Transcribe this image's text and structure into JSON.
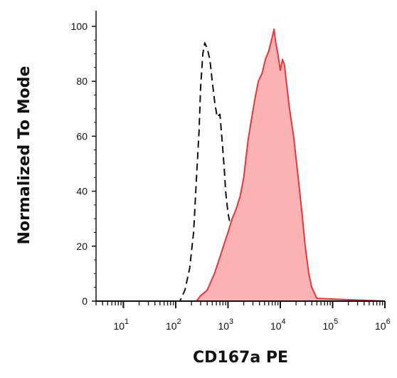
{
  "chart_data": {
    "type": "area",
    "xlabel": "CD167a PE",
    "ylabel": "Normalized To Mode",
    "x_scale": "log",
    "xlim": [
      3,
      1000000
    ],
    "ylim": [
      0,
      100
    ],
    "y_ticks": [
      0,
      20,
      40,
      60,
      80,
      100
    ],
    "x_ticks": [
      {
        "value": 10,
        "base": "10",
        "exp": "1"
      },
      {
        "value": 100,
        "base": "10",
        "exp": "2"
      },
      {
        "value": 1000,
        "base": "10",
        "exp": "3"
      },
      {
        "value": 10000,
        "base": "10",
        "exp": "4"
      },
      {
        "value": 100000,
        "base": "10",
        "exp": "5"
      },
      {
        "value": 1000000,
        "base": "10",
        "exp": "6"
      }
    ],
    "grid": false,
    "legend": "none",
    "colors": {
      "filled_line": "#e8363a",
      "filled_area": "#fdb3b4",
      "control_line": "#111111"
    },
    "series": [
      {
        "style": "dashed-unfilled",
        "x": [
          3,
          100,
          120,
          150,
          185,
          220,
          250,
          280,
          300,
          330,
          360,
          400,
          450,
          500,
          560,
          620,
          700,
          760,
          850,
          900,
          1000,
          1100,
          1200,
          1350,
          1500,
          1700,
          2000,
          2400,
          3000,
          4000,
          5500,
          7000,
          10000,
          13000,
          1000000
        ],
        "y": [
          0,
          0,
          0,
          4,
          12,
          25,
          45,
          62,
          78,
          90,
          94,
          92,
          88,
          80,
          72,
          67,
          68,
          60,
          48,
          40,
          32,
          28,
          25,
          18,
          12,
          7,
          4,
          2,
          1,
          0.5,
          1.2,
          0.6,
          0,
          0,
          0
        ]
      },
      {
        "style": "filled",
        "x": [
          3,
          250,
          300,
          400,
          550,
          700,
          850,
          1000,
          1200,
          1400,
          1700,
          2000,
          2400,
          2800,
          3300,
          3800,
          4500,
          5200,
          6000,
          7000,
          7600,
          8200,
          9000,
          10000,
          11000,
          12000,
          13000,
          15000,
          18000,
          22000,
          26000,
          30000,
          35000,
          40000,
          50000,
          1000000
        ],
        "y": [
          0,
          0,
          2,
          4,
          10,
          16,
          21,
          25,
          30,
          33,
          38,
          45,
          58,
          66,
          74,
          80,
          83,
          88,
          91,
          96,
          99,
          94,
          90,
          84,
          88,
          86,
          80,
          70,
          60,
          45,
          32,
          20,
          10,
          5,
          1,
          0
        ]
      }
    ]
  }
}
